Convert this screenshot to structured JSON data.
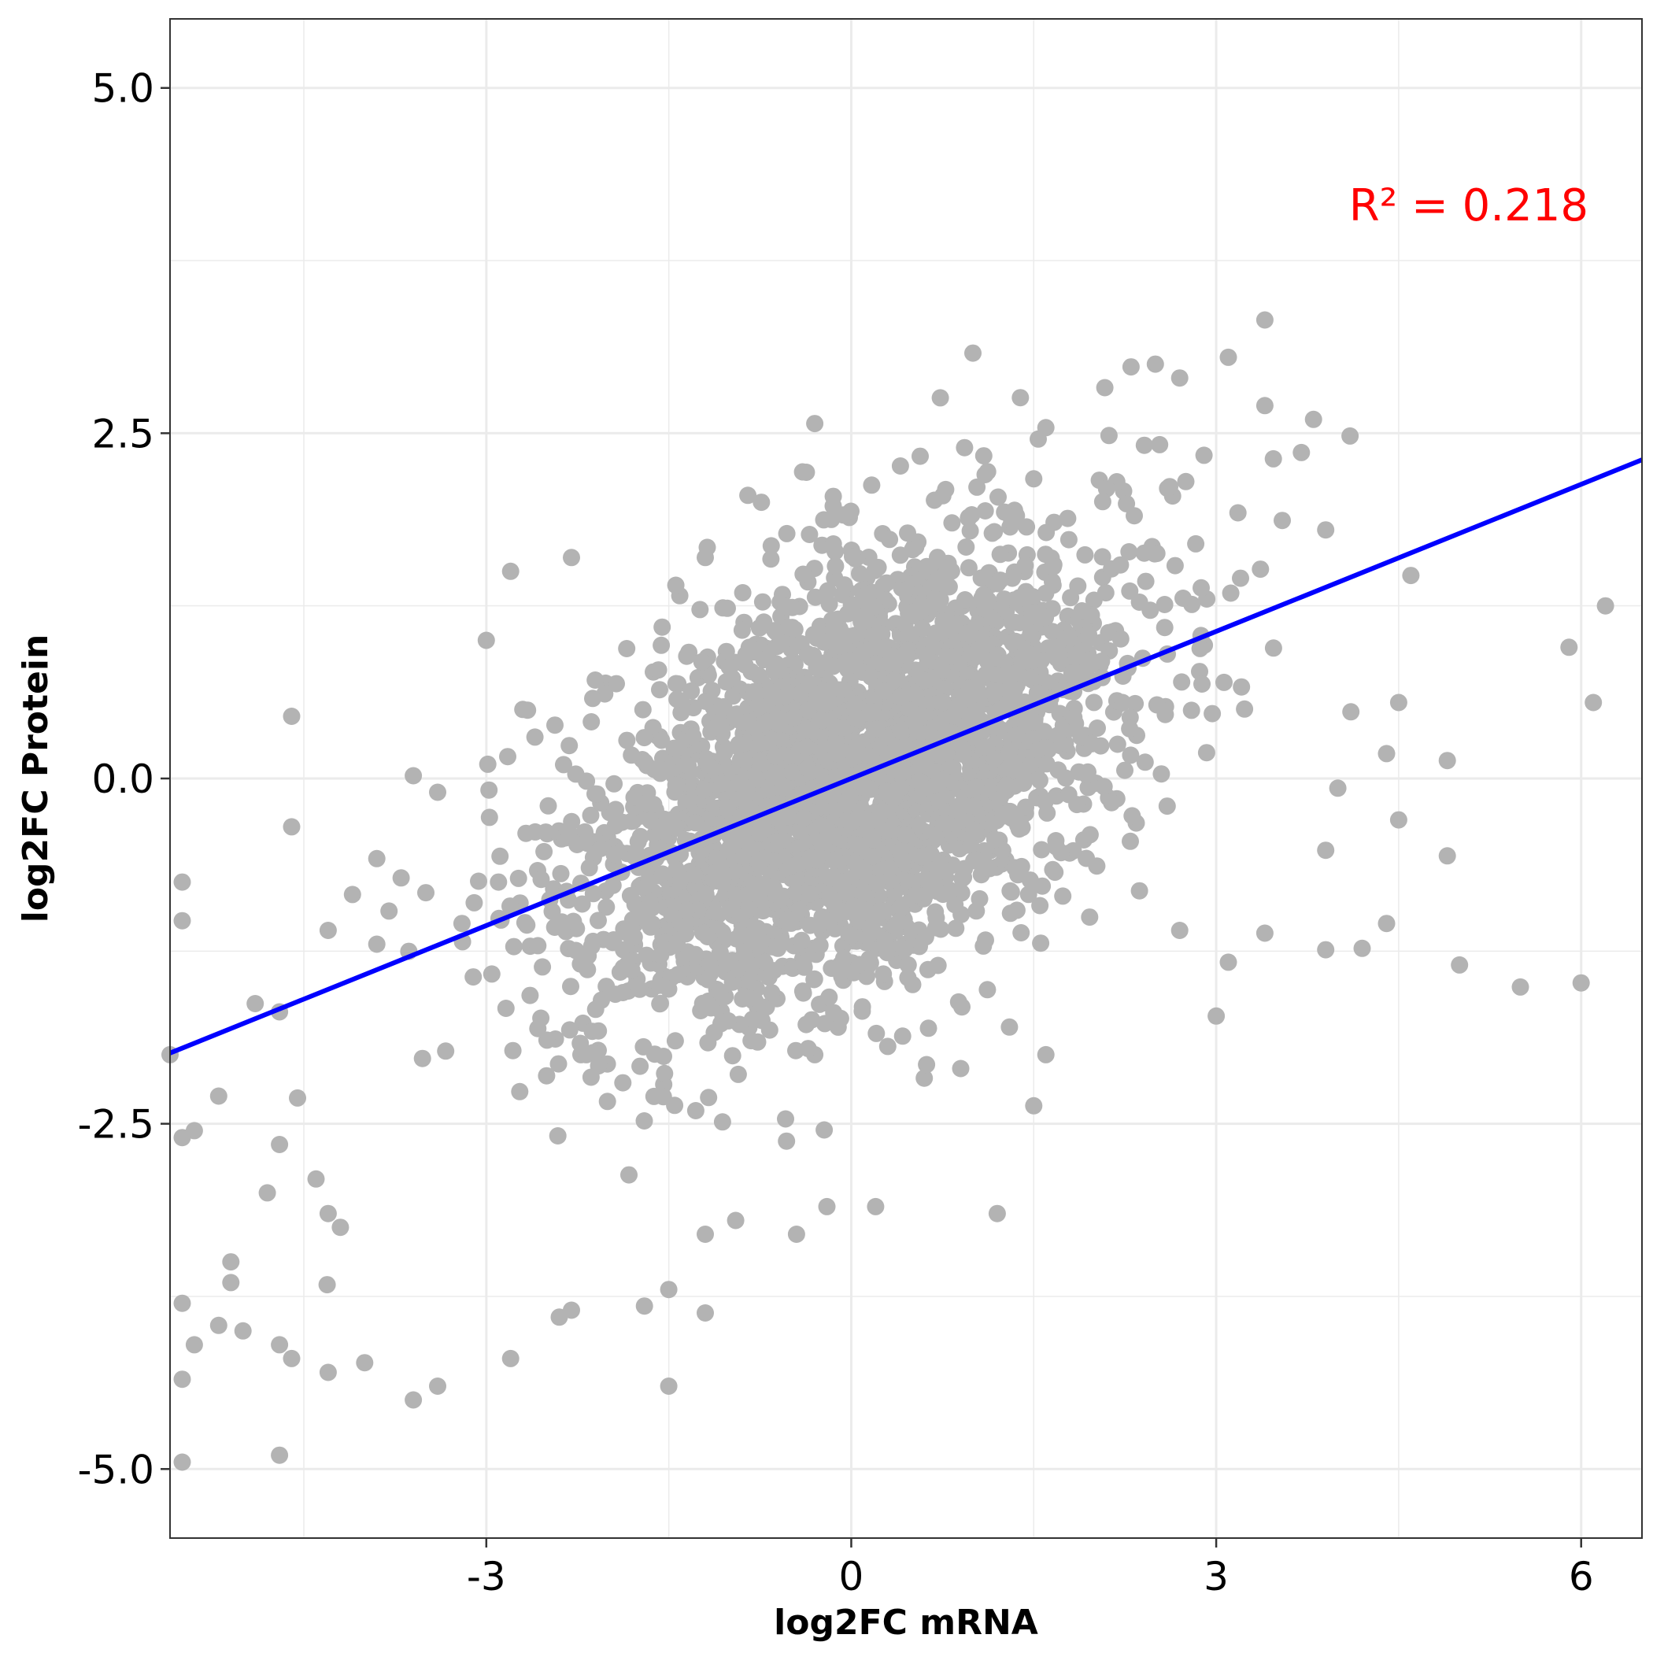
{
  "chart_data": {
    "type": "scatter",
    "title": "",
    "xlabel": "log2FC mRNA",
    "ylabel": "log2FC Protein",
    "xlim": [
      -5.6,
      6.5
    ],
    "ylim": [
      -5.5,
      5.5
    ],
    "x_ticks": [
      "-3",
      "0",
      "3",
      "6"
    ],
    "x_tick_values": [
      -3,
      0,
      3,
      6
    ],
    "y_ticks": [
      "5.0",
      "2.5",
      "0.0",
      "-2.5",
      "-5.0"
    ],
    "y_tick_values": [
      5.0,
      2.5,
      0.0,
      -2.5,
      -5.0
    ],
    "grid": true,
    "legend": "none",
    "point_color": "#b3b3b3",
    "line_color": "#0000ff",
    "annotation_color": "#ff0000",
    "annotation": "R² =  0.218",
    "regression": {
      "slope": 0.355,
      "intercept": 0.0
    },
    "points": [
      [
        3.4,
        3.32
      ],
      [
        1.0,
        3.08
      ],
      [
        2.5,
        3.0
      ],
      [
        2.3,
        2.98
      ],
      [
        2.7,
        2.9
      ],
      [
        3.1,
        3.05
      ],
      [
        3.4,
        2.7
      ],
      [
        3.8,
        2.6
      ],
      [
        4.1,
        2.48
      ],
      [
        3.7,
        2.36
      ],
      [
        -0.3,
        2.57
      ],
      [
        -0.4,
        2.22
      ],
      [
        -0.85,
        2.05
      ],
      [
        1.6,
        2.54
      ],
      [
        1.1,
        2.2
      ],
      [
        1.5,
        2.17
      ],
      [
        2.6,
        2.1
      ],
      [
        2.75,
        2.15
      ],
      [
        2.9,
        2.34
      ],
      [
        3.9,
        1.8
      ],
      [
        3.2,
        1.45
      ],
      [
        4.6,
        1.47
      ],
      [
        6.2,
        1.25
      ],
      [
        5.9,
        0.95
      ],
      [
        6.1,
        0.55
      ],
      [
        4.5,
        0.55
      ],
      [
        4.4,
        0.18
      ],
      [
        4.9,
        0.13
      ],
      [
        4.0,
        -0.07
      ],
      [
        4.5,
        -0.3
      ],
      [
        4.9,
        -0.56
      ],
      [
        3.9,
        -0.52
      ],
      [
        4.4,
        -1.05
      ],
      [
        5.0,
        -1.35
      ],
      [
        5.5,
        -1.51
      ],
      [
        6.0,
        -1.48
      ],
      [
        4.2,
        -1.23
      ],
      [
        3.9,
        -1.24
      ],
      [
        3.4,
        -1.12
      ],
      [
        3.1,
        -1.33
      ],
      [
        3.0,
        -1.72
      ],
      [
        2.7,
        -1.1
      ],
      [
        1.6,
        -2.0
      ],
      [
        1.5,
        -2.37
      ],
      [
        1.3,
        -1.8
      ],
      [
        0.3,
        -1.94
      ],
      [
        -0.3,
        -2.0
      ],
      [
        0.6,
        -2.17
      ],
      [
        0.9,
        -2.1
      ],
      [
        1.2,
        -3.15
      ],
      [
        -2.3,
        1.6
      ],
      [
        -1.2,
        1.6
      ],
      [
        -2.8,
        1.5
      ],
      [
        -2.7,
        0.5
      ],
      [
        -4.6,
        0.45
      ],
      [
        -3.6,
        0.02
      ],
      [
        -3.4,
        -0.1
      ],
      [
        -4.6,
        -0.35
      ],
      [
        -5.5,
        -0.75
      ],
      [
        -5.5,
        -1.03
      ],
      [
        -4.1,
        -0.84
      ],
      [
        -3.9,
        -0.58
      ],
      [
        -4.9,
        -1.63
      ],
      [
        -5.6,
        -2.0
      ],
      [
        -4.7,
        -1.69
      ],
      [
        -5.2,
        -2.3
      ],
      [
        -5.4,
        -2.55
      ],
      [
        -5.5,
        -2.6
      ],
      [
        -4.7,
        -2.65
      ],
      [
        -4.4,
        -2.9
      ],
      [
        -4.8,
        -3.0
      ],
      [
        -4.3,
        -3.15
      ],
      [
        -4.2,
        -3.25
      ],
      [
        -5.1,
        -3.5
      ],
      [
        -5.1,
        -3.65
      ],
      [
        -5.5,
        -3.8
      ],
      [
        -5.4,
        -4.1
      ],
      [
        -5.0,
        -4.0
      ],
      [
        -5.2,
        -3.96
      ],
      [
        -4.7,
        -4.1
      ],
      [
        -4.6,
        -4.2
      ],
      [
        -4.3,
        -4.3
      ],
      [
        -4.0,
        -4.23
      ],
      [
        -5.5,
        -4.35
      ],
      [
        -3.6,
        -4.5
      ],
      [
        -3.4,
        -4.4
      ],
      [
        -4.7,
        -4.9
      ],
      [
        -5.5,
        -4.95
      ],
      [
        -1.5,
        -4.4
      ],
      [
        -2.8,
        -4.2
      ],
      [
        -2.3,
        -3.85
      ],
      [
        -2.4,
        -3.9
      ],
      [
        -1.7,
        -3.82
      ],
      [
        -1.5,
        -3.7
      ],
      [
        -1.2,
        -3.87
      ],
      [
        -0.45,
        -3.3
      ],
      [
        -0.95,
        -3.2
      ],
      [
        -1.2,
        -3.3
      ],
      [
        0.2,
        -3.1
      ],
      [
        -0.2,
        -3.1
      ],
      [
        -3.0,
        1.0
      ],
      [
        -2.6,
        0.3
      ],
      [
        -2.5,
        -0.4
      ],
      [
        -2.9,
        -0.75
      ],
      [
        -3.1,
        -0.9
      ],
      [
        -3.2,
        -1.05
      ],
      [
        -3.7,
        -0.72
      ],
      [
        -3.8,
        -0.96
      ],
      [
        -3.9,
        -1.2
      ],
      [
        -4.3,
        -1.1
      ]
    ],
    "cloud": {
      "n": 3000,
      "mean": [
        0.0,
        0.0
      ],
      "sd": [
        1.1,
        0.85
      ],
      "rho": 0.47,
      "seed": 20240611
    }
  }
}
